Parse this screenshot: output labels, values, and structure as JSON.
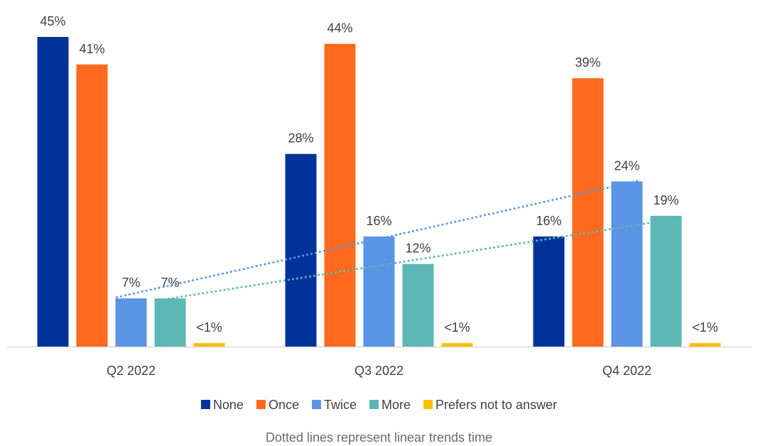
{
  "chart_data": {
    "type": "bar",
    "categories": [
      "Q2 2022",
      "Q3 2022",
      "Q4 2022"
    ],
    "series": [
      {
        "name": "None",
        "color": "#003399",
        "values": [
          45,
          28,
          16
        ],
        "labels": [
          "45%",
          "28%",
          "16%"
        ]
      },
      {
        "name": "Once",
        "color": "#FF6A1F",
        "values": [
          41,
          44,
          39
        ],
        "labels": [
          "41%",
          "44%",
          "39%"
        ]
      },
      {
        "name": "Twice",
        "color": "#5B95E5",
        "values": [
          7,
          16,
          24
        ],
        "labels": [
          "7%",
          "16%",
          "24%"
        ]
      },
      {
        "name": "More",
        "color": "#5BB8B4",
        "values": [
          7,
          12,
          19
        ],
        "labels": [
          "7%",
          "12%",
          "19%"
        ]
      },
      {
        "name": "Prefers not to answer",
        "color": "#FFC000",
        "values": [
          0.5,
          0.5,
          0.5
        ],
        "labels": [
          "<1%",
          "<1%",
          "<1%"
        ]
      }
    ],
    "trendlines": [
      {
        "series": "Twice",
        "style": "dotted",
        "color": "#5B95E5"
      },
      {
        "series": "More",
        "style": "dotted",
        "color": "#5BB8B4"
      }
    ],
    "ylim": [
      0,
      45
    ],
    "grid": false,
    "legend_position": "bottom",
    "title": "",
    "xlabel": "",
    "ylabel": ""
  },
  "footnote": "Dotted lines represent linear trends time"
}
